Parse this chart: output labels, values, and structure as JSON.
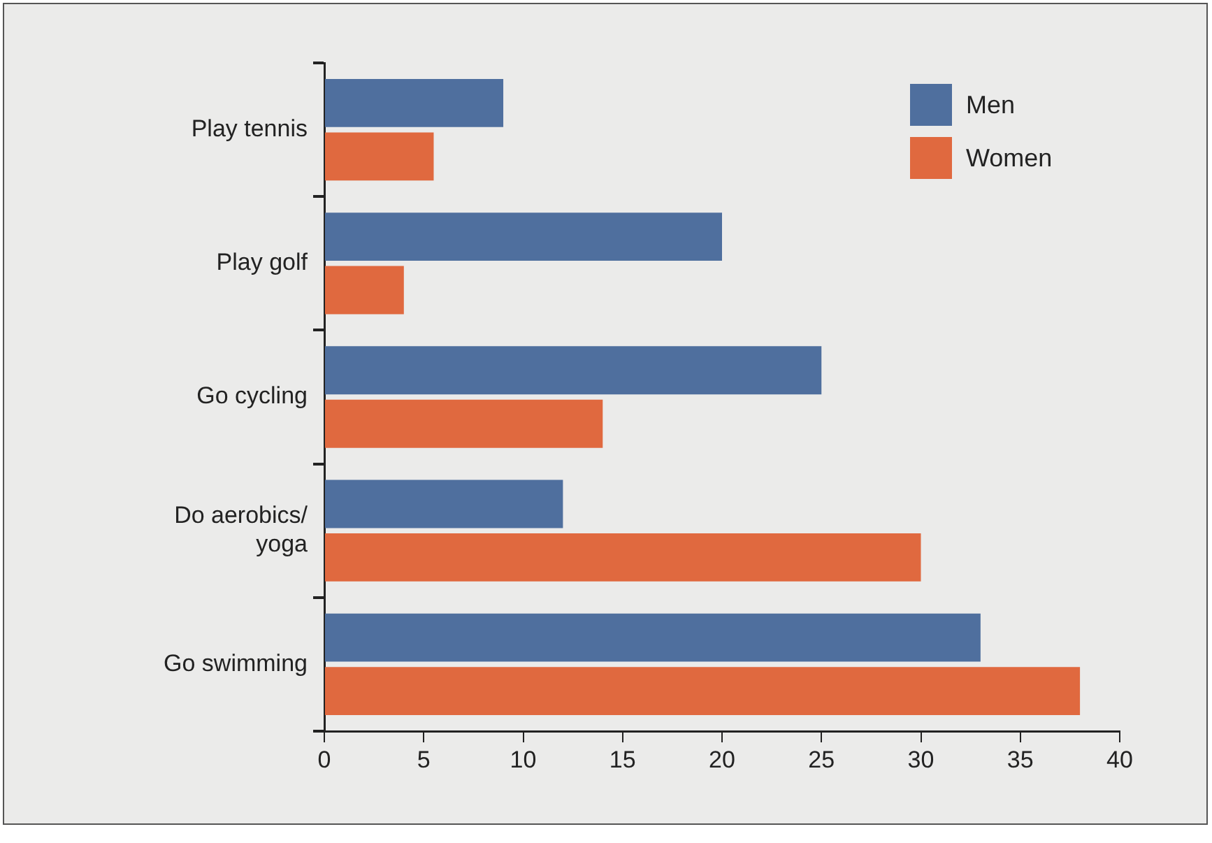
{
  "chart_data": {
    "type": "bar",
    "orientation": "horizontal",
    "categories": [
      "Play tennis",
      "Play golf",
      "Go cycling",
      "Do aerobics/yoga",
      "Go swimming"
    ],
    "series": [
      {
        "name": "Men",
        "color": "#4f6f9e",
        "values": [
          9,
          20,
          25,
          12,
          33
        ]
      },
      {
        "name": "Women",
        "color": "#e0693f",
        "values": [
          5.5,
          4,
          14,
          30,
          38
        ]
      }
    ],
    "xlim": [
      0,
      40
    ],
    "xticks": [
      0,
      5,
      10,
      15,
      20,
      25,
      30,
      35,
      40
    ],
    "grid": false,
    "legend": "top right"
  }
}
